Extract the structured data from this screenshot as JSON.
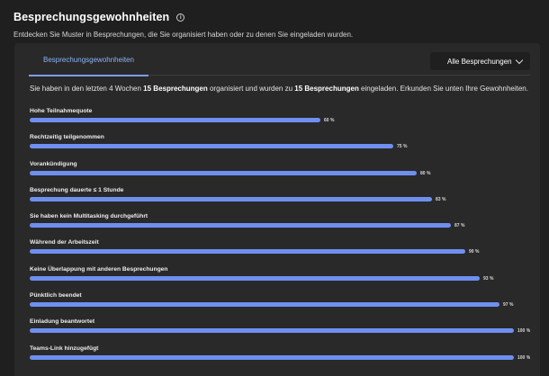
{
  "header": {
    "title": "Besprechungsgewohnheiten",
    "info_icon": "info-icon",
    "subtitle": "Entdecken Sie Muster in Besprechungen, die Sie organisiert haben oder zu denen Sie eingeladen wurden."
  },
  "tabs": [
    {
      "label": "Besprechungsgewohnheiten",
      "active": true
    }
  ],
  "filter": {
    "selected": "Alle Besprechungen",
    "icon": "chevron-down-icon"
  },
  "summary": {
    "part1": "Sie haben in den letzten 4 Wochen ",
    "organized": "15 Besprechungen",
    "part2": " organisiert und wurden zu ",
    "invited": "15 Besprechungen",
    "part3": " eingeladen. Erkunden Sie unten Ihre Gewohnheiten."
  },
  "accent_color": "#6f8ff0",
  "metrics": [
    {
      "label": "Hohe Teilnahmequote",
      "percent": 60,
      "display": "60 %"
    },
    {
      "label": "Rechtzeitig teilgenommen",
      "percent": 75,
      "display": "75 %"
    },
    {
      "label": "Vorankündigung",
      "percent": 80,
      "display": "80 %"
    },
    {
      "label": "Besprechung dauerte ≤ 1 Stunde",
      "percent": 83,
      "display": "83 %"
    },
    {
      "label": "Sie haben kein Multitasking durchgeführt",
      "percent": 87,
      "display": "87 %"
    },
    {
      "label": "Während der Arbeitszeit",
      "percent": 90,
      "display": "90 %"
    },
    {
      "label": "Keine Überlappung mit anderen Besprechungen",
      "percent": 93,
      "display": "93 %"
    },
    {
      "label": "Pünktlich beendet",
      "percent": 97,
      "display": "97 %"
    },
    {
      "label": "Einladung beantwortet",
      "percent": 100,
      "display": "100 %"
    },
    {
      "label": "Teams-Link hinzugefügt",
      "percent": 100,
      "display": "100 %"
    }
  ]
}
